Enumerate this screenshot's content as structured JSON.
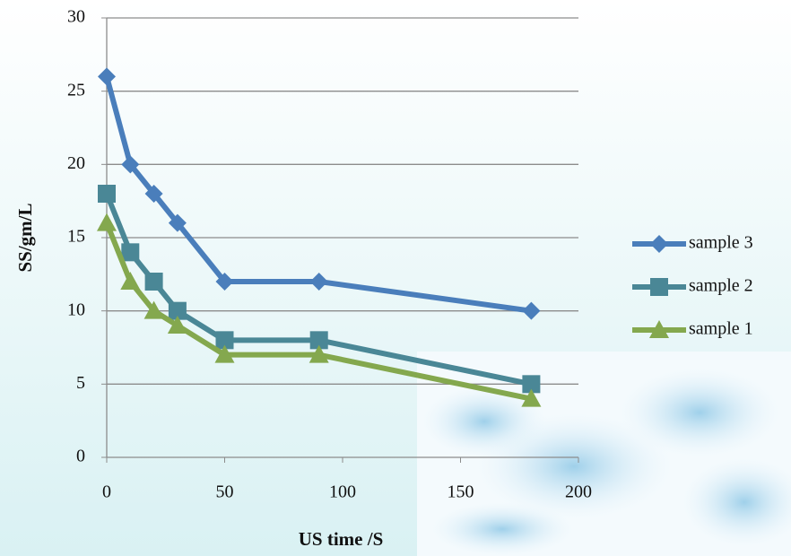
{
  "chart_data": {
    "type": "line",
    "x_label": "US time /S",
    "y_label": "SS/gm/L",
    "x": [
      0,
      10,
      20,
      30,
      50,
      90,
      180
    ],
    "series": [
      {
        "name": "sample 3",
        "color": "#4a7ebb",
        "marker": "diamond",
        "values": [
          26,
          20,
          18,
          16,
          12,
          12,
          10
        ]
      },
      {
        "name": "sample 2",
        "color": "#4a8796",
        "marker": "square",
        "values": [
          18,
          14,
          12,
          10,
          8,
          8,
          5
        ]
      },
      {
        "name": "sample 1",
        "color": "#84a84e",
        "marker": "triangle",
        "values": [
          16,
          12,
          10,
          9,
          7,
          7,
          4
        ]
      }
    ],
    "xlim": [
      0,
      200
    ],
    "xticks": [
      0,
      50,
      100,
      150,
      200
    ],
    "ylim": [
      0,
      30
    ],
    "yticks": [
      0,
      5,
      10,
      15,
      20,
      25,
      30
    ],
    "grid": true,
    "legend": "right"
  }
}
